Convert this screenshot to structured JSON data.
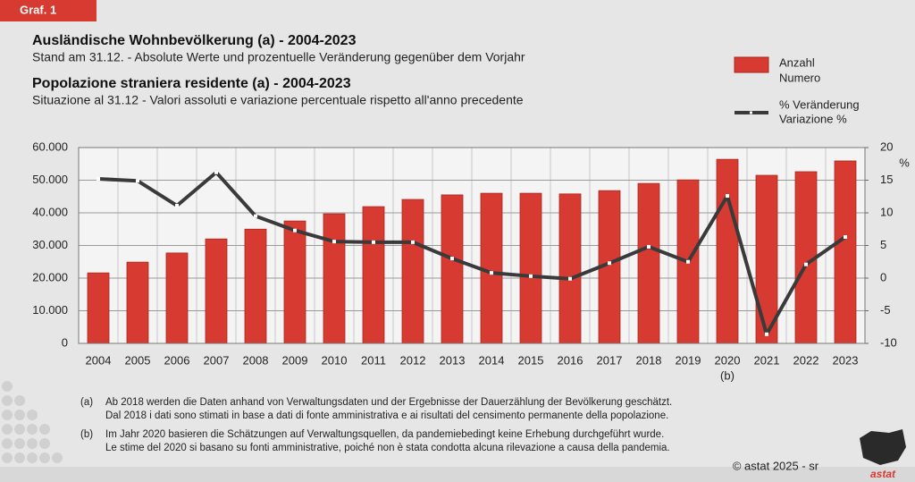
{
  "badge": "Graf. 1",
  "chart_data": {
    "type": "bar",
    "titles": [
      {
        "title": "Ausländische Wohnbevölkerung (a) - 2004-2023",
        "subtitle": "Stand am 31.12. - Absolute Werte und prozentuelle Veränderung gegenüber dem Vorjahr"
      },
      {
        "title": "Popolazione straniera residente (a) - 2004-2023",
        "subtitle": "Situazione al 31.12 - Valori assoluti e variazione percentuale rispetto all'anno precedente"
      }
    ],
    "categories": [
      "2004",
      "2005",
      "2006",
      "2007",
      "2008",
      "2009",
      "2010",
      "2011",
      "2012",
      "2013",
      "2014",
      "2015",
      "2016",
      "2017",
      "2018",
      "2019",
      "2020",
      "2021",
      "2022",
      "2023"
    ],
    "annotations": [
      {
        "x": "2020",
        "text": "(b)"
      }
    ],
    "series": [
      {
        "name": [
          "Anzahl",
          "Numero"
        ],
        "type": "bar",
        "color": "#d63a31",
        "values": [
          21600,
          24900,
          27700,
          32000,
          35000,
          37500,
          39700,
          41900,
          44100,
          45500,
          46000,
          46000,
          45800,
          46800,
          49000,
          50100,
          56400,
          51500,
          52600,
          55900
        ]
      },
      {
        "name": [
          "% Veränderung",
          "Variazione %"
        ],
        "type": "line",
        "axis": "y2",
        "color": "#3a3a3a",
        "values": [
          15.2,
          14.9,
          11.1,
          16.2,
          9.5,
          7.3,
          5.6,
          5.5,
          5.5,
          3.0,
          0.8,
          0.3,
          -0.1,
          2.3,
          4.8,
          2.5,
          12.6,
          -8.6,
          2.1,
          6.3
        ]
      }
    ],
    "ylim": [
      0,
      60000
    ],
    "yticks": [
      0,
      {
        "value": 10000,
        "label": "10.000"
      },
      {
        "value": 20000,
        "label": "20.000"
      },
      {
        "value": 30000,
        "label": "30.000"
      },
      {
        "value": 40000,
        "label": "40.000"
      },
      {
        "value": 50000,
        "label": "50.000"
      },
      {
        "value": 60000,
        "label": "60.000"
      }
    ],
    "y2lim": [
      -10,
      20
    ],
    "y2ticks": [
      -10,
      -5,
      0,
      5,
      10,
      15,
      20
    ],
    "y2label": "%",
    "grid": true
  },
  "notes": [
    {
      "marker": "(a)",
      "lines": [
        "Ab 2018 werden die Daten anhand von Verwaltungsdaten und der Ergebnisse der Dauerzählung der Bevölkerung geschätzt.",
        "Dal 2018 i dati sono stimati in base a dati di fonte amministrativa e ai risultati del censimento permanente della popolazione."
      ]
    },
    {
      "marker": "(b)",
      "lines": [
        "Im Jahr 2020 basieren die Schätzungen auf Verwaltungsquellen, da pandemiebedingt keine Erhebung durchgeführt wurde.",
        "Le stime del 2020 si basano su fonti amministrative, poiché non è stata condotta alcuna rilevazione a causa della pandemia."
      ]
    }
  ],
  "copyright": "© astat 2025 - sr",
  "logo": "astat"
}
